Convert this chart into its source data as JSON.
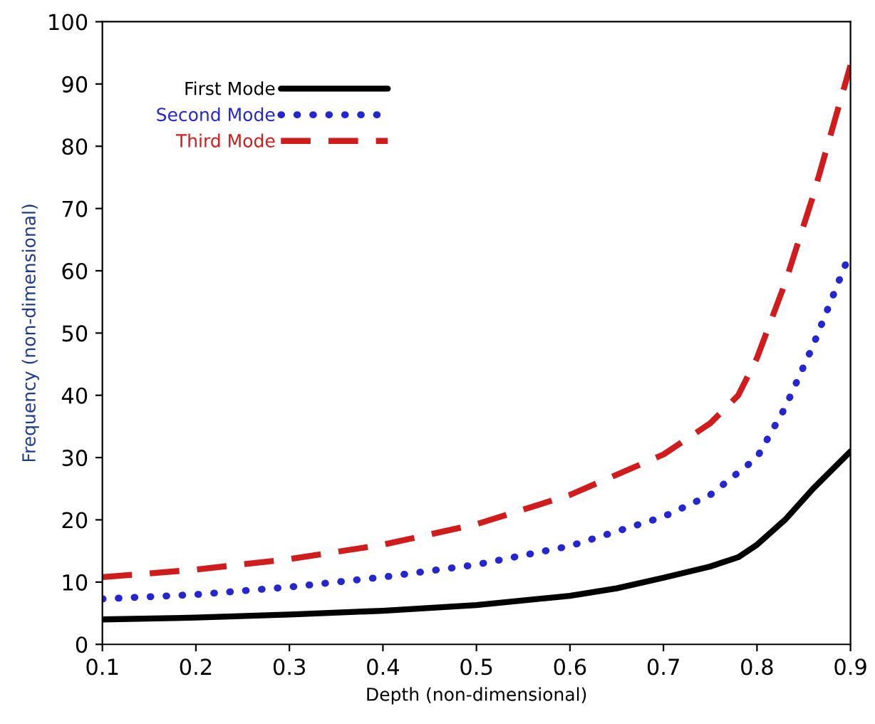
{
  "chart_data": {
    "type": "line",
    "xlabel": "Depth (non-dimensional)",
    "ylabel": "Frequency (non-dimensional)",
    "xlim": [
      0.1,
      0.9
    ],
    "ylim": [
      0,
      100
    ],
    "xticks": [
      0.1,
      0.2,
      0.3,
      0.4,
      0.5,
      0.6,
      0.7,
      0.8,
      0.9
    ],
    "yticks": [
      0,
      10,
      20,
      30,
      40,
      50,
      60,
      70,
      80,
      90,
      100
    ],
    "grid": false,
    "legend": "top left",
    "marker": "none",
    "series": [
      {
        "name": "First Mode",
        "color": "#000000",
        "line_style": "solid",
        "x": [
          0.1,
          0.2,
          0.3,
          0.4,
          0.5,
          0.6,
          0.65,
          0.7,
          0.75,
          0.78,
          0.8,
          0.83,
          0.86,
          0.9
        ],
        "values": [
          4,
          4.3,
          4.8,
          5.4,
          6.3,
          7.8,
          9,
          10.7,
          12.5,
          14,
          16,
          20,
          25,
          31
        ]
      },
      {
        "name": "Second Mode",
        "color": "#2626d0",
        "line_style": "dotted",
        "x": [
          0.1,
          0.2,
          0.3,
          0.4,
          0.5,
          0.6,
          0.7,
          0.75,
          0.8,
          0.83,
          0.86,
          0.9
        ],
        "values": [
          7.3,
          8,
          9.2,
          10.8,
          12.8,
          15.8,
          20.5,
          24,
          30,
          38,
          48,
          63
        ]
      },
      {
        "name": "Third Mode",
        "color": "#d01c1c",
        "line_style": "dashed",
        "x": [
          0.1,
          0.2,
          0.3,
          0.4,
          0.5,
          0.6,
          0.7,
          0.75,
          0.78,
          0.8,
          0.83,
          0.86,
          0.9
        ],
        "values": [
          10.8,
          12,
          13.7,
          16,
          19.3,
          24,
          30.5,
          35.5,
          40,
          46,
          58,
          72,
          93
        ]
      }
    ]
  }
}
